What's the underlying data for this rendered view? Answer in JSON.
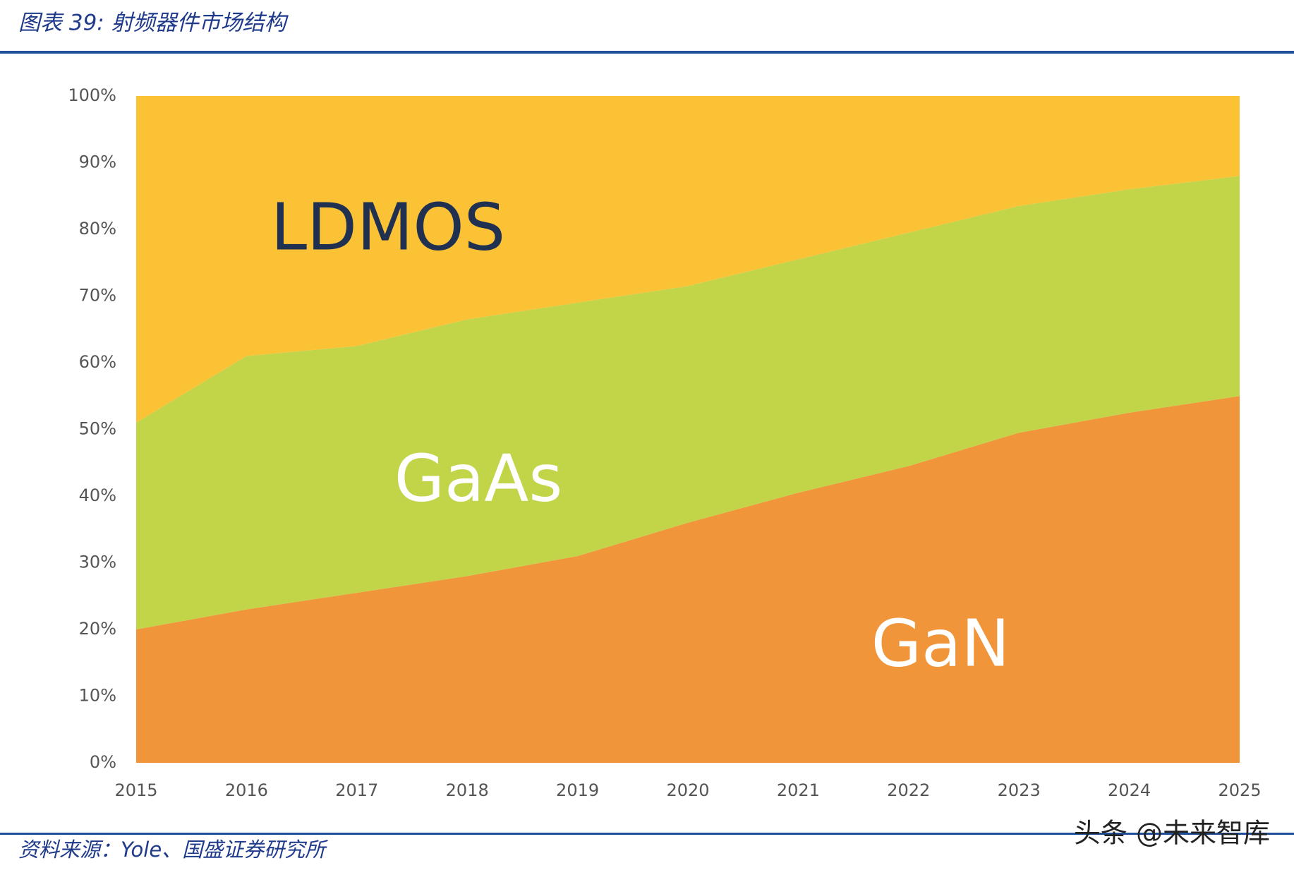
{
  "chart_data": {
    "type": "stacked-area",
    "title": "图表 39:  射频器件市场结构",
    "source": "资料来源：Yole、国盛证券研究所",
    "categories": [
      "2015",
      "2016",
      "2017",
      "2018",
      "2019",
      "2020",
      "2021",
      "2022",
      "2023",
      "2024",
      "2025"
    ],
    "series": [
      {
        "name": "GaN",
        "color": "#f0953a",
        "label_color": "#ffffff",
        "values": [
          20,
          23,
          25.5,
          28,
          31,
          36,
          40.5,
          44.5,
          49.5,
          52.5,
          55
        ]
      },
      {
        "name": "GaAs",
        "color": "#c2d448",
        "label_color": "#ffffff",
        "values": [
          31,
          38,
          37,
          38.5,
          38,
          35.5,
          35,
          35,
          34,
          33.5,
          33
        ]
      },
      {
        "name": "LDMOS",
        "color": "#fbc236",
        "label_color": "#1f3050",
        "values": [
          49,
          39,
          37.5,
          33.5,
          31,
          28.5,
          24.5,
          20.5,
          16.5,
          14,
          12
        ]
      }
    ],
    "ylim": [
      0,
      100
    ],
    "yticks": [
      {
        "value": 0,
        "label": "0%"
      },
      {
        "value": 10,
        "label": "10%"
      },
      {
        "value": 20,
        "label": "20%"
      },
      {
        "value": 30,
        "label": "30%"
      },
      {
        "value": 40,
        "label": "40%"
      },
      {
        "value": 50,
        "label": "50%"
      },
      {
        "value": 60,
        "label": "60%"
      },
      {
        "value": 70,
        "label": "70%"
      },
      {
        "value": 80,
        "label": "80%"
      },
      {
        "value": 90,
        "label": "90%"
      },
      {
        "value": 100,
        "label": "100%"
      }
    ],
    "grid": false
  },
  "watermark": "头条 @未来智库"
}
